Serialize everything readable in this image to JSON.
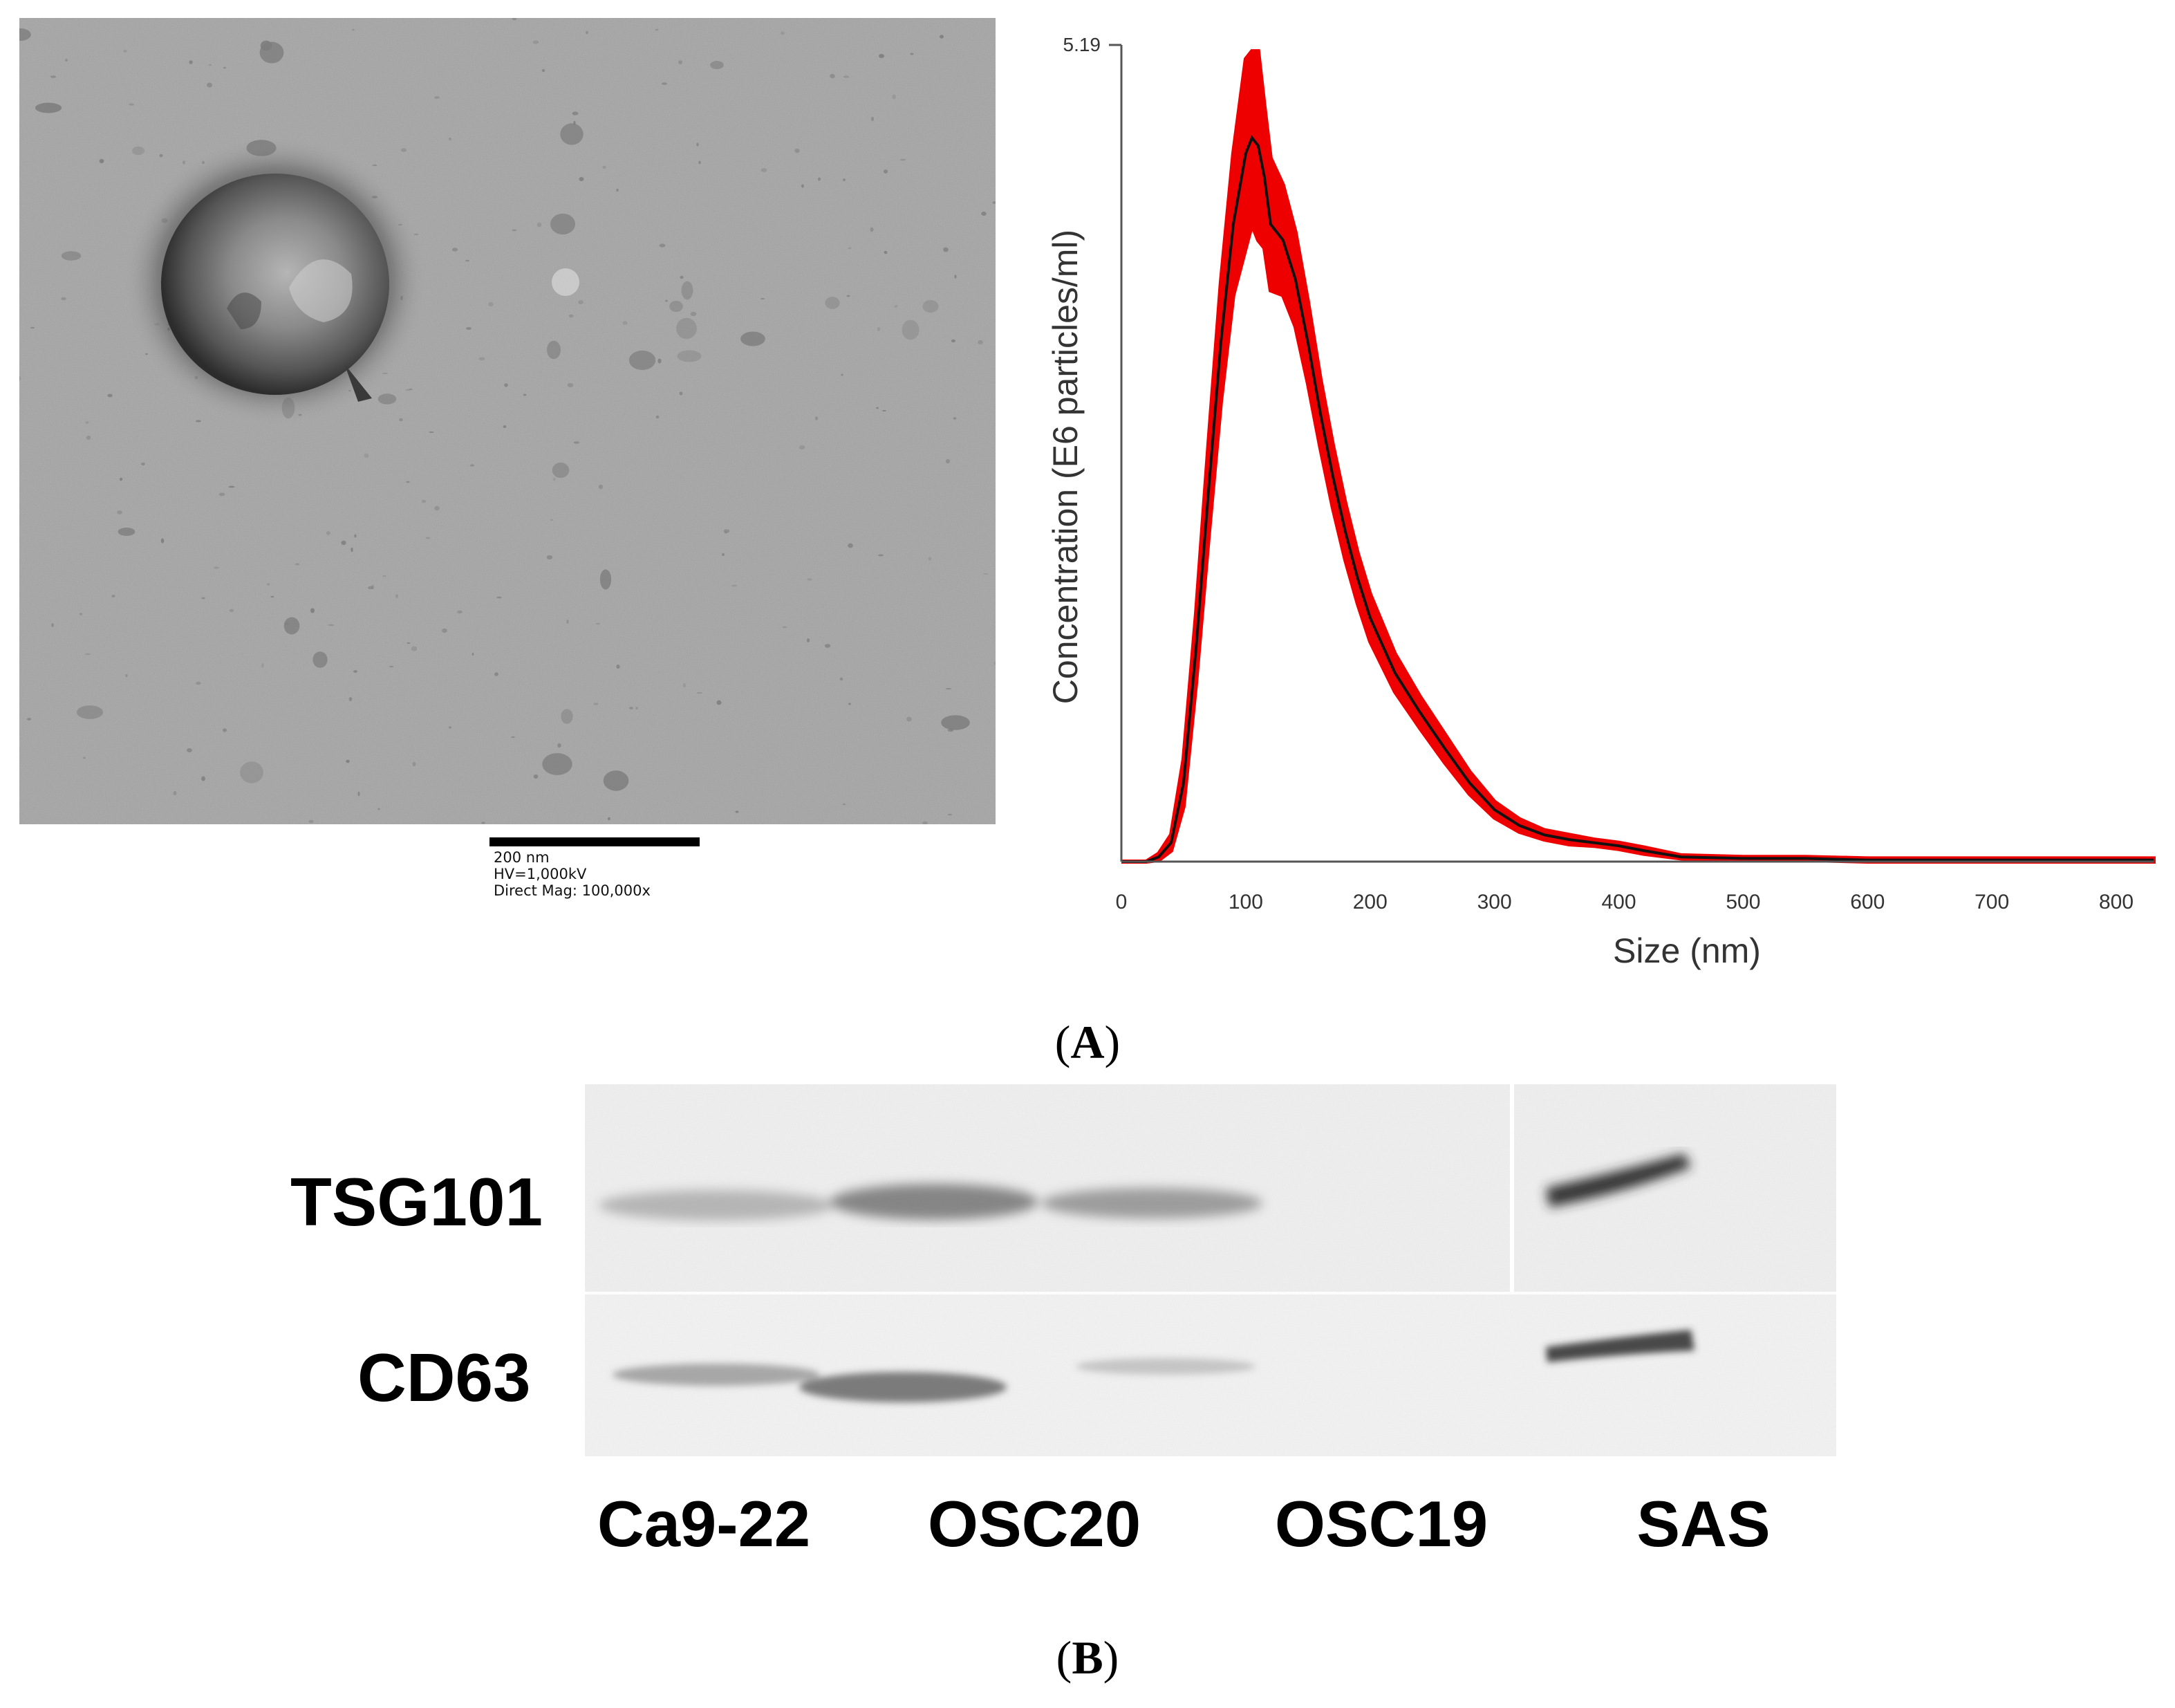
{
  "panel_a": {
    "label": "A",
    "tem": {
      "scale_bar_text": "200 nm",
      "hv_text": "HV=1,000kV",
      "mag_text": "Direct Mag: 100,000x"
    },
    "chart_data": {
      "type": "line",
      "title": "",
      "xlabel": "Size (nm)",
      "ylabel": "Concentration (E6 particles/ml)",
      "xlim": [
        0,
        830
      ],
      "ylim": [
        0,
        5.19
      ],
      "xticks": [
        0,
        100,
        200,
        300,
        400,
        500,
        600,
        700,
        800
      ],
      "ytick_label": "5.19",
      "grid": false,
      "legend": "none",
      "colors": {
        "mean_line": "#111111",
        "error_band": "#ee0000"
      },
      "series": [
        {
          "x": [
            0,
            20,
            30,
            40,
            50,
            60,
            70,
            80,
            90,
            100,
            105,
            110,
            115,
            120,
            130,
            140,
            150,
            160,
            170,
            180,
            190,
            200,
            220,
            240,
            260,
            280,
            300,
            320,
            340,
            360,
            380,
            400,
            420,
            450,
            500,
            550,
            600,
            700,
            830
          ],
          "values": [
            0,
            0,
            0.03,
            0.12,
            0.5,
            1.35,
            2.35,
            3.3,
            4.05,
            4.5,
            4.6,
            4.55,
            4.35,
            4.05,
            3.95,
            3.7,
            3.3,
            2.85,
            2.45,
            2.1,
            1.8,
            1.55,
            1.2,
            0.95,
            0.72,
            0.5,
            0.33,
            0.23,
            0.17,
            0.14,
            0.12,
            0.1,
            0.07,
            0.03,
            0.02,
            0.02,
            0.01,
            0.01,
            0.01
          ],
          "error": [
            0,
            0,
            0.02,
            0.05,
            0.15,
            0.22,
            0.3,
            0.38,
            0.45,
            0.6,
            0.55,
            0.6,
            0.45,
            0.42,
            0.35,
            0.3,
            0.26,
            0.22,
            0.2,
            0.18,
            0.16,
            0.15,
            0.12,
            0.1,
            0.09,
            0.07,
            0.05,
            0.04,
            0.03,
            0.03,
            0.02,
            0.02,
            0.02,
            0.01,
            0.01,
            0.01,
            0.01,
            0.01,
            0.01
          ]
        }
      ]
    }
  },
  "panel_b": {
    "label": "B",
    "rows": [
      "TSG101",
      "CD63"
    ],
    "lanes": [
      "Ca9-22",
      "OSC20",
      "OSC19",
      "SAS"
    ]
  }
}
